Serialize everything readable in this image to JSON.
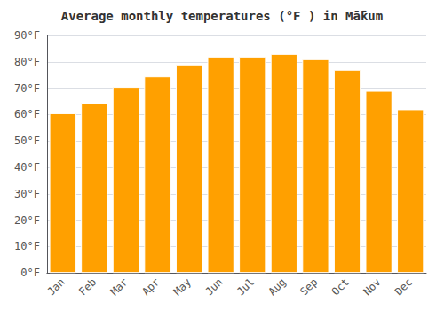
{
  "chart_data": {
    "type": "bar",
    "title": "Average monthly temperatures (°F ) in Mā̄kum",
    "categories": [
      "Jan",
      "Feb",
      "Mar",
      "Apr",
      "May",
      "Jun",
      "Jul",
      "Aug",
      "Sep",
      "Oct",
      "Nov",
      "Dec"
    ],
    "values": [
      60.5,
      64.5,
      70.5,
      74.5,
      79,
      82,
      82,
      83,
      81,
      77,
      69,
      62
    ],
    "color": "#FFA000",
    "ylim": [
      0,
      90
    ],
    "yticks": [
      {
        "value": 0,
        "label": "0°F"
      },
      {
        "value": 10,
        "label": "10°F"
      },
      {
        "value": 20,
        "label": "20°F"
      },
      {
        "value": 30,
        "label": "30°F"
      },
      {
        "value": 40,
        "label": "40°F"
      },
      {
        "value": 50,
        "label": "50°F"
      },
      {
        "value": 60,
        "label": "60°F"
      },
      {
        "value": 70,
        "label": "70°F"
      },
      {
        "value": 80,
        "label": "80°F"
      },
      {
        "value": 90,
        "label": "90°F"
      }
    ],
    "grid": true
  }
}
